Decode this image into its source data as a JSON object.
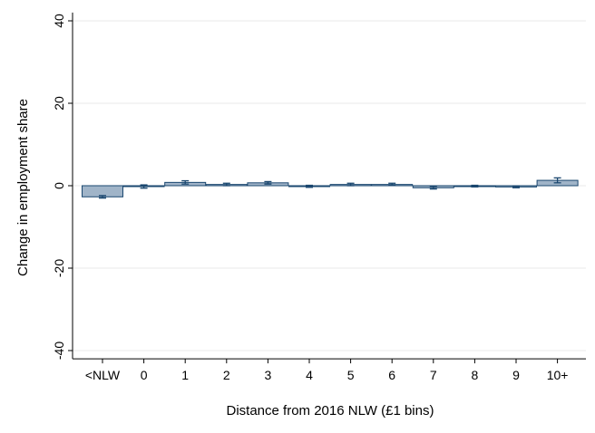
{
  "chart_data": {
    "type": "bar",
    "title": "",
    "xlabel": "Distance from 2016 NLW (£1 bins)",
    "ylabel": "Change in employment share",
    "categories": [
      "<NLW",
      "0",
      "1",
      "2",
      "3",
      "4",
      "5",
      "6",
      "7",
      "8",
      "9",
      "10+"
    ],
    "values": [
      -2.7,
      -0.2,
      0.8,
      0.3,
      0.7,
      -0.2,
      0.3,
      0.3,
      -0.5,
      -0.1,
      -0.3,
      1.3
    ],
    "error_low": [
      -3.0,
      -0.6,
      0.4,
      0.0,
      0.4,
      -0.4,
      0.0,
      0.1,
      -0.8,
      -0.3,
      -0.5,
      0.7
    ],
    "error_high": [
      -2.4,
      0.2,
      1.2,
      0.6,
      1.0,
      0.1,
      0.6,
      0.6,
      -0.2,
      0.1,
      -0.1,
      1.9
    ],
    "ylim": [
      -42,
      42
    ],
    "yticks": [
      -40,
      -20,
      0,
      20,
      40
    ],
    "ytick_labels": [
      "-40",
      "-20",
      "0",
      "20",
      "40"
    ],
    "grid": true,
    "colors": {
      "bar_fill": "#a0b4c8",
      "bar_stroke": "#1a476f",
      "error_bar": "#1a476f",
      "grid": "#eaeaea",
      "axis": "#000000"
    }
  }
}
